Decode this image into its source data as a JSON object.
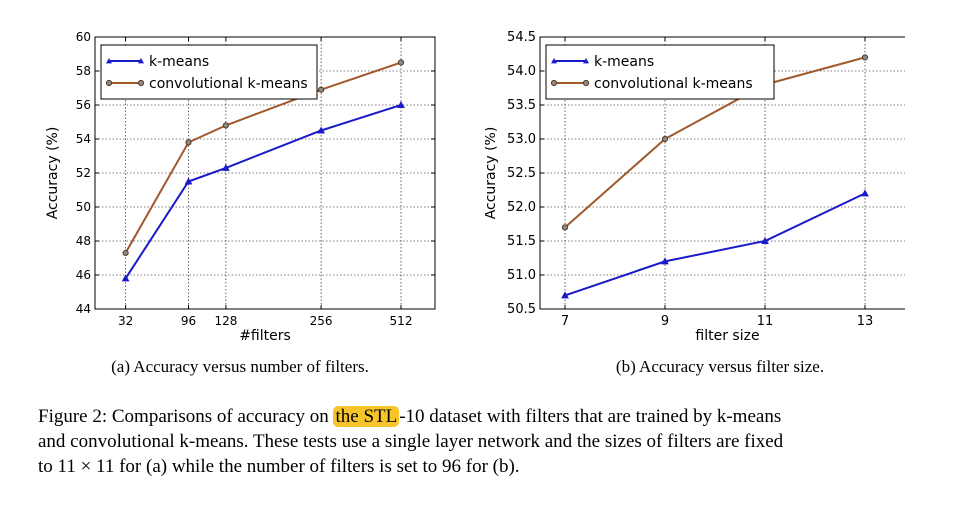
{
  "chart_data": [
    {
      "type": "line",
      "x": [
        32,
        96,
        128,
        256,
        512
      ],
      "xlabel": "#filters",
      "ylabel": "Accuracy (%)",
      "xticks": [
        "32",
        "96",
        "128",
        "256",
        "512"
      ],
      "yticks": [
        "44",
        "46",
        "48",
        "50",
        "52",
        "54",
        "56",
        "58",
        "60"
      ],
      "ylim": [
        44,
        60
      ],
      "grid": true,
      "legend": "top-left",
      "series": [
        {
          "name": "k-means",
          "values": [
            45.8,
            51.5,
            52.3,
            54.5,
            56.0
          ],
          "color": "#1a1ac8",
          "marker": "triangle"
        },
        {
          "name": "convolutional k-means",
          "values": [
            47.3,
            53.8,
            54.8,
            56.9,
            58.5
          ],
          "color": "#a05a2c",
          "marker": "circle"
        }
      ]
    },
    {
      "type": "line",
      "x": [
        7,
        9,
        11,
        13
      ],
      "xlabel": "filter size",
      "ylabel": "Accuracy (%)",
      "xticks": [
        "7",
        "9",
        "11",
        "13"
      ],
      "yticks": [
        "50.5",
        "51.0",
        "51.5",
        "52.0",
        "52.5",
        "53.0",
        "53.5",
        "54.0",
        "54.5"
      ],
      "xlim": [
        6.5,
        14
      ],
      "ylim": [
        50.5,
        54.5
      ],
      "grid": true,
      "legend": "top-left",
      "series": [
        {
          "name": "k-means",
          "values": [
            50.7,
            51.2,
            51.5,
            52.2
          ],
          "color": "#1a1ac8",
          "marker": "triangle"
        },
        {
          "name": "convolutional k-means",
          "values": [
            51.7,
            53.0,
            53.8,
            54.2
          ],
          "color": "#a05a2c",
          "marker": "circle"
        }
      ]
    }
  ],
  "subcaptions": {
    "a": "(a) Accuracy versus number of filters.",
    "b": "(b) Accuracy versus filter size."
  },
  "caption": {
    "prefix": "Figure 2: Comparisons of accuracy on ",
    "highlighted": "the STL",
    "rest_line1": "-10 dataset with filters that are trained by k-means",
    "line2": "and convolutional k-means. These tests use a single layer network and the sizes of filters are fixed",
    "line3": "to 11 × 11 for (a) while the number of filters is set to 96 for (b)."
  }
}
